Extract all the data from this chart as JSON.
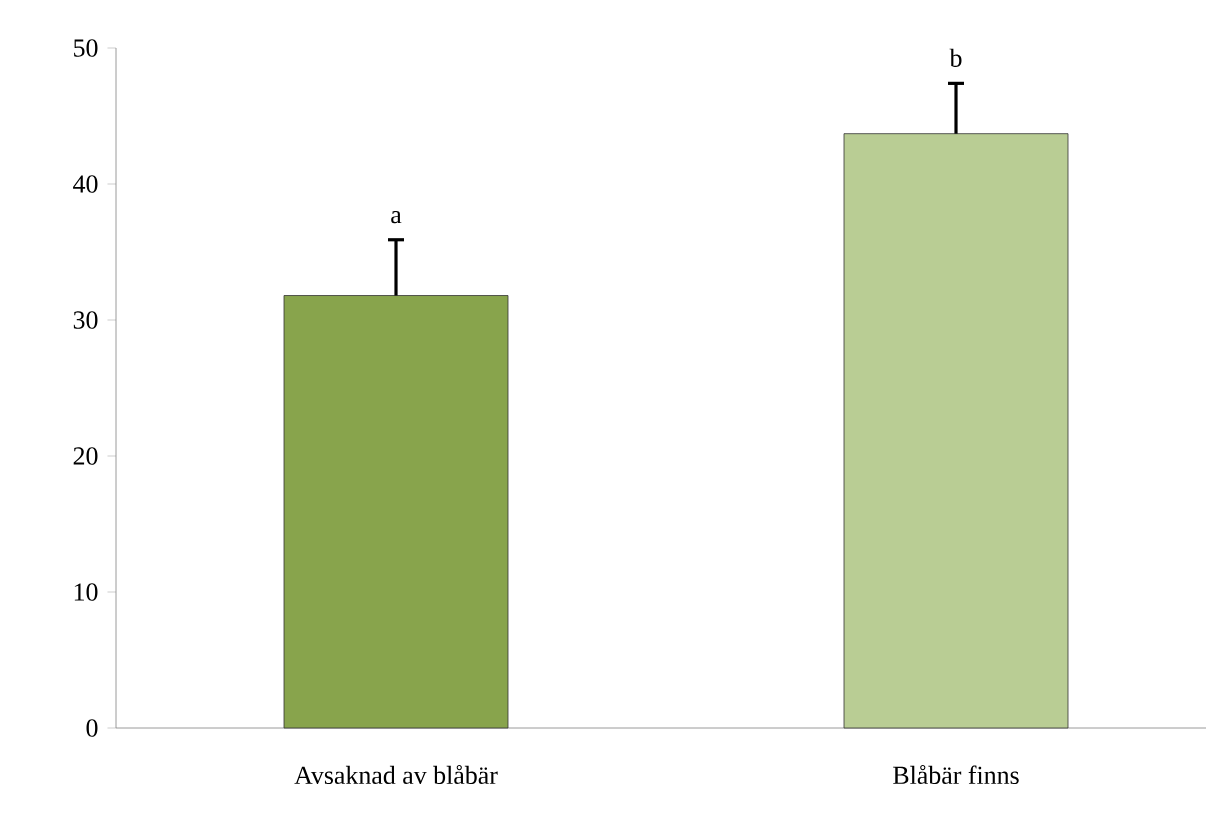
{
  "chart_data": {
    "type": "bar",
    "categories": [
      "Avsaknad av blåbär",
      "Blåbär finns"
    ],
    "values": [
      31.8,
      43.7
    ],
    "colors": [
      "#88a44c",
      "#b9cd94"
    ],
    "errors": [
      [
        31.8,
        35.9
      ],
      [
        43.7,
        47.4
      ]
    ],
    "ylim": [
      0,
      50
    ],
    "yticks": [
      0,
      10,
      20,
      30,
      40,
      50
    ],
    "annotations": [
      {
        "text": "a",
        "x": "Avsaknad av blåbär",
        "y": 35.9
      },
      {
        "text": "b",
        "x": "Blåbär finns",
        "y": 47.4
      }
    ],
    "grid": false
  }
}
